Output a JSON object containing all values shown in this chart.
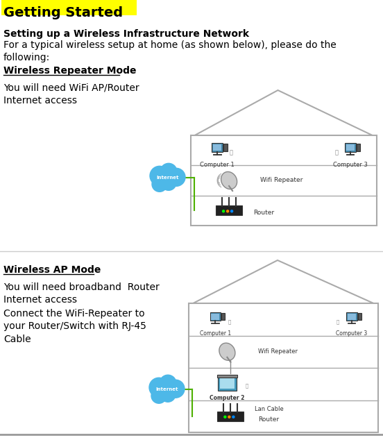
{
  "bg_color": "#ffffff",
  "title": "Getting Started",
  "title_highlight": "#ffff00",
  "section1_title": "Setting up a Wireless Infrastructure Network",
  "section1_body": "For a typical wireless setup at home (as shown below), please do the\nfollowing:",
  "mode1_title": "Wireless Repeater Mode",
  "mode1_body": "You will need WiFi AP/Router\nInternet access",
  "mode2_title": "Wireless AP Mode",
  "mode2_body": "You will need broadband  Router\nInternet access",
  "mode2_body2": "Connect the WiFi-Repeater to\nyour Router/Switch with RJ-45\nCable",
  "diagram1": {
    "house_color": "#cccccc",
    "internet_cloud_color": "#4db8e8",
    "internet_text": "Internet",
    "labels": [
      "Computer 1",
      "Computer 3",
      "Wifi Repeater",
      "Router"
    ],
    "cable_color": "#4db000"
  },
  "diagram2": {
    "house_color": "#cccccc",
    "internet_cloud_color": "#4db8e8",
    "internet_text": "Internet",
    "labels": [
      "Computer 1",
      "Computer 3",
      "Wifi Repeater",
      "Computer 2",
      "Lan Cable",
      "Router"
    ],
    "cable_color": "#4db000"
  },
  "figsize": [
    5.52,
    6.34
  ],
  "dpi": 100
}
